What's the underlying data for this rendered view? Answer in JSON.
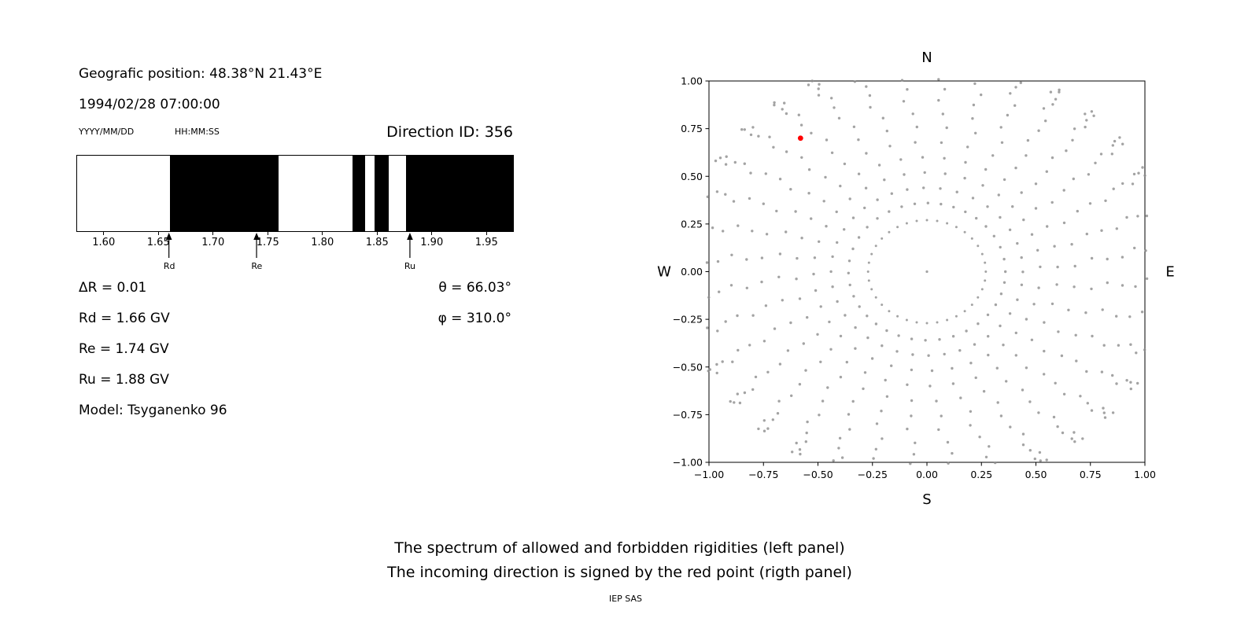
{
  "header": {
    "geo_position": "Geografic position: 48.38°N 21.43°E",
    "datetime": "1994/02/28 07:00:00",
    "date_format_label": "YYYY/MM/DD",
    "time_format_label": "HH:MM:SS",
    "direction_id_label": "Direction ID: 356"
  },
  "params": {
    "delta_r": "ΔR = 0.01",
    "rd": "Rd = 1.66 GV",
    "re": "Re = 1.74 GV",
    "ru": "Ru = 1.88 GV",
    "model": "Model: Tsyganenko 96",
    "theta": "θ = 66.03°",
    "phi": "φ = 310.0°"
  },
  "caption": {
    "line1": "The spectrum of allowed and forbidden rigidities (left panel)",
    "line2": "The incoming direction is signed by the red point (rigth panel)",
    "credit": "IEP SAS"
  },
  "chart_data": [
    {
      "type": "bar",
      "name": "rigidity-spectrum",
      "description": "Allowed (white) and forbidden (black) rigidity bands in GV",
      "xlim": [
        1.575,
        1.975
      ],
      "xtick_values": [
        1.6,
        1.65,
        1.7,
        1.75,
        1.8,
        1.85,
        1.9,
        1.95
      ],
      "xtick_labels": [
        "1.60",
        "1.65",
        "1.70",
        "1.75",
        "1.80",
        "1.85",
        "1.90",
        "1.95"
      ],
      "forbidden_bands_GV": [
        [
          1.66,
          1.76
        ],
        [
          1.828,
          1.839
        ],
        [
          1.848,
          1.861
        ],
        [
          1.877,
          1.975
        ]
      ],
      "band_color": "#000000",
      "allowed_color": "#ffffff",
      "markers": [
        {
          "label": "Rd",
          "value": 1.66
        },
        {
          "label": "Re",
          "value": 1.74
        },
        {
          "label": "Ru",
          "value": 1.88
        }
      ]
    },
    {
      "type": "scatter",
      "name": "asymptotic-directions",
      "description": "Asymptotic directions; red point marks the incoming direction",
      "xlim": [
        -1.0,
        1.0
      ],
      "ylim": [
        -1.0,
        1.0
      ],
      "xtick_values": [
        -1.0,
        -0.75,
        -0.5,
        -0.25,
        0.0,
        0.25,
        0.5,
        0.75,
        1.0
      ],
      "xtick_labels": [
        "−1.00",
        "−0.75",
        "−0.50",
        "−0.25",
        "0.00",
        "0.25",
        "0.50",
        "0.75",
        "1.00"
      ],
      "ytick_values": [
        -1.0,
        -0.75,
        -0.5,
        -0.25,
        0.0,
        0.25,
        0.5,
        0.75,
        1.0
      ],
      "ytick_labels": [
        "−1.00",
        "−0.75",
        "−0.50",
        "−0.25",
        "0.00",
        "0.25",
        "0.50",
        "0.75",
        "1.00"
      ],
      "compass_labels": {
        "north": "N",
        "south": "S",
        "west": "W",
        "east": "E"
      },
      "gray_color": "#8c8c8c",
      "red_point": {
        "x": -0.58,
        "y": 0.7,
        "color": "#ff0000",
        "meaning": "incoming direction"
      },
      "center_point": {
        "x": 0.0,
        "y": 0.0
      },
      "inner_ring": {
        "radius": 0.27,
        "count": 36,
        "start_deg": 0
      },
      "spokes": {
        "count": 36,
        "start_deg": 0,
        "step_deg": 10,
        "radii": [
          0.36,
          0.44,
          0.52,
          0.6,
          0.68,
          0.76,
          0.83,
          0.9,
          0.96,
          1.01,
          1.05,
          1.08,
          1.1,
          1.12,
          1.13
        ],
        "curvature_deg": 8
      }
    }
  ]
}
